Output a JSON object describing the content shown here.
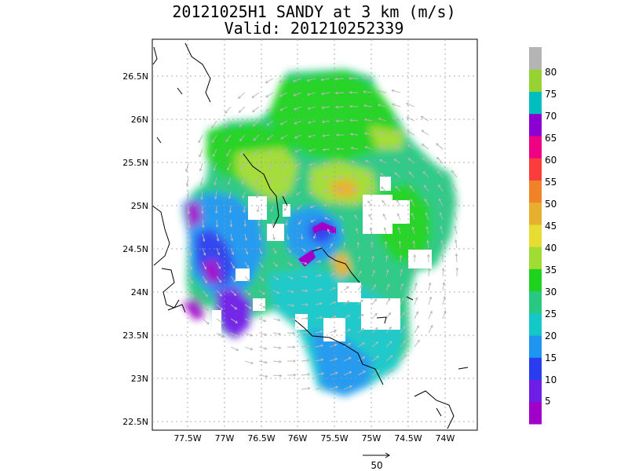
{
  "title": "20121025H1 SANDY at 3 km (m/s)",
  "subtitle": "Valid: 201210252339",
  "lat_ticks": [
    "26.5N",
    "26N",
    "25.5N",
    "25N",
    "24.5N",
    "24N",
    "23.5N",
    "23N",
    "22.5N"
  ],
  "lon_ticks": [
    "77.5W",
    "77W",
    "76.5W",
    "76W",
    "75.5W",
    "75W",
    "74.5W",
    "74W"
  ],
  "colorbar": {
    "labels": [
      "5",
      "10",
      "15",
      "20",
      "25",
      "30",
      "35",
      "40",
      "45",
      "50",
      "55",
      "60",
      "65",
      "70",
      "75",
      "80"
    ],
    "colors": [
      "#a000c8",
      "#6e1ee6",
      "#2a3cf0",
      "#1e96f0",
      "#14c8c8",
      "#28c882",
      "#1ed21e",
      "#a0dc32",
      "#e6dc32",
      "#e6af2d",
      "#f08228",
      "#fa3c3c",
      "#f00082",
      "#8c00d2",
      "#00bebe",
      "#96d232",
      "#b4b4b4"
    ]
  },
  "reference_vector": {
    "label": "50"
  },
  "chart_data": {
    "type": "heatmap",
    "title": "20121025H1 SANDY at 3 km (m/s)",
    "subtitle": "Valid: 201210252339",
    "x_range": [
      -78.0,
      -73.7
    ],
    "y_range": [
      22.45,
      26.85
    ],
    "color_levels": [
      0,
      5,
      10,
      15,
      20,
      25,
      30,
      35,
      40,
      45,
      50,
      55,
      60,
      65,
      70,
      75,
      80
    ],
    "regions": [
      {
        "name": "north-band",
        "lon": -75.7,
        "lat": 26.2,
        "value": 33
      },
      {
        "name": "northwest-band",
        "lon": -76.6,
        "lat": 25.6,
        "value": 32
      },
      {
        "name": "inner-ring-north",
        "lon": -75.8,
        "lat": 25.15,
        "value": 37
      },
      {
        "name": "max-north",
        "lon": -75.5,
        "lat": 25.2,
        "value": 43
      },
      {
        "name": "east-band",
        "lon": -74.8,
        "lat": 24.9,
        "value": 31
      },
      {
        "name": "west-outer",
        "lon": -77.1,
        "lat": 24.9,
        "value": 21
      },
      {
        "name": "west-low",
        "lon": -77.2,
        "lat": 24.3,
        "value": 12
      },
      {
        "name": "southwest-low",
        "lon": -76.8,
        "lat": 23.7,
        "value": 8
      },
      {
        "name": "center",
        "lon": -75.85,
        "lat": 24.7,
        "value": 14
      },
      {
        "name": "max-southeast",
        "lon": -75.45,
        "lat": 24.3,
        "value": 44
      },
      {
        "name": "south-band",
        "lon": -75.3,
        "lat": 23.4,
        "value": 22
      }
    ],
    "vector_reference": 50
  }
}
